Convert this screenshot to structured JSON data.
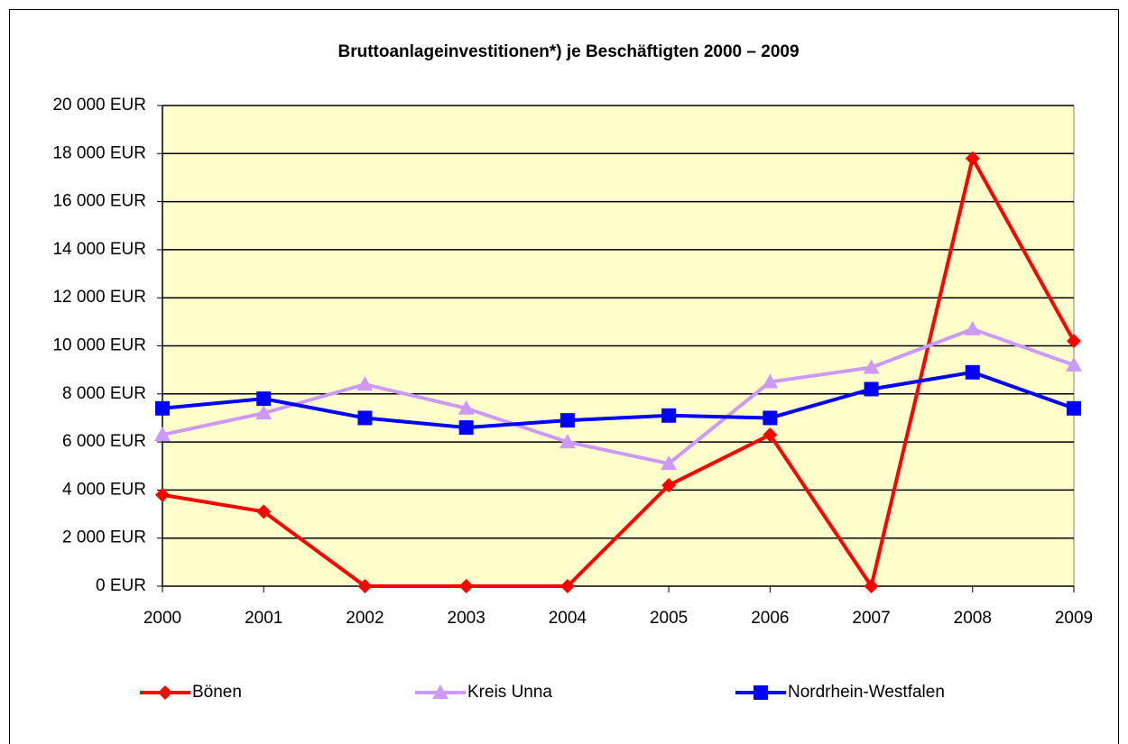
{
  "chart_data": {
    "type": "line",
    "title": "Bruttoanlageinvestitionen*) je Beschäftigten 2000 – 2009",
    "categories": [
      "2000",
      "2001",
      "2002",
      "2003",
      "2004",
      "2005",
      "2006",
      "2007",
      "2008",
      "2009"
    ],
    "series": [
      {
        "name": "Bönen",
        "color": "#ff0000",
        "marker": "diamond",
        "values": [
          3800,
          3100,
          0,
          0,
          0,
          4200,
          6300,
          0,
          17800,
          10200
        ]
      },
      {
        "name": "Kreis Unna",
        "color": "#cc99ff",
        "marker": "triangle",
        "values": [
          6300,
          7200,
          8400,
          7400,
          6000,
          5100,
          8500,
          9100,
          10700,
          9200
        ]
      },
      {
        "name": "Nordrhein-Westfalen",
        "color": "#0000ff",
        "marker": "square",
        "values": [
          7400,
          7800,
          7000,
          6600,
          6900,
          7100,
          7000,
          8200,
          8900,
          7400
        ]
      }
    ],
    "ylim": [
      0,
      20000
    ],
    "yticks": [
      {
        "value": 0,
        "label": "0 EUR"
      },
      {
        "value": 2000,
        "label": "2 000 EUR"
      },
      {
        "value": 4000,
        "label": "4 000 EUR"
      },
      {
        "value": 6000,
        "label": "6 000 EUR"
      },
      {
        "value": 8000,
        "label": "8 000 EUR"
      },
      {
        "value": 10000,
        "label": "10 000 EUR"
      },
      {
        "value": 12000,
        "label": "12 000 EUR"
      },
      {
        "value": 14000,
        "label": "14 000 EUR"
      },
      {
        "value": 16000,
        "label": "16 000 EUR"
      },
      {
        "value": 18000,
        "label": "18 000 EUR"
      },
      {
        "value": 20000,
        "label": "20 000 EUR"
      }
    ],
    "grid": true,
    "legend": "bottom",
    "plot_background": "#ffffcc"
  }
}
